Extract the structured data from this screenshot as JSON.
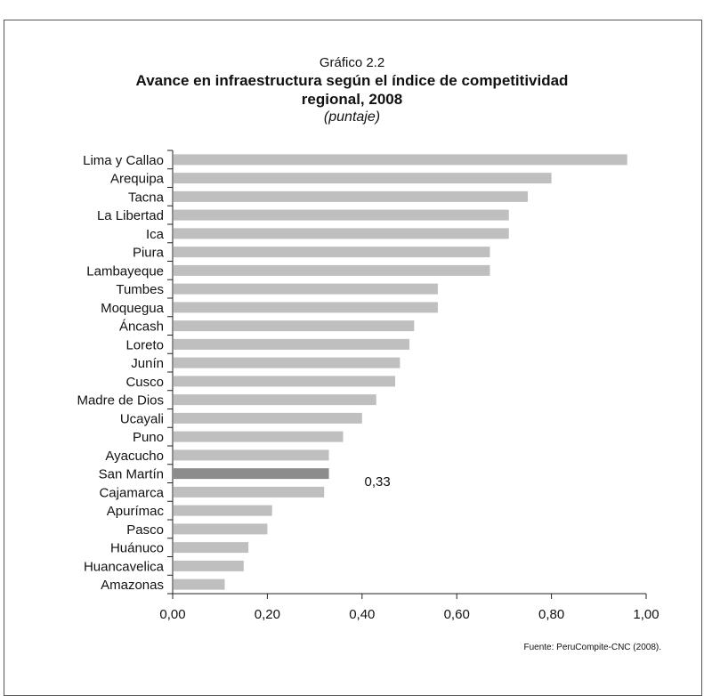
{
  "header": {
    "label": "Gráfico 2.2",
    "title_line1": "Avance en infraestructura según el índice de competitividad",
    "title_line2": "regional, 2008",
    "subtitle": "(puntaje)"
  },
  "source": "Fuente: PeruCompite-CNC (2008).",
  "chart_data": {
    "type": "bar",
    "orientation": "horizontal",
    "title": "Avance en infraestructura según el índice de competitividad regional, 2008",
    "subtitle": "(puntaje)",
    "categories": [
      "Lima y Callao",
      "Arequipa",
      "Tacna",
      "La Libertad",
      "Ica",
      "Piura",
      "Lambayeque",
      "Tumbes",
      "Moquegua",
      "Áncash",
      "Loreto",
      "Junín",
      "Cusco",
      "Madre de Dios",
      "Ucayali",
      "Puno",
      "Ayacucho",
      "San Martín",
      "Cajamarca",
      "Apurímac",
      "Pasco",
      "Huánuco",
      "Huancavelica",
      "Amazonas"
    ],
    "values": [
      0.96,
      0.8,
      0.75,
      0.71,
      0.71,
      0.67,
      0.67,
      0.56,
      0.56,
      0.51,
      0.5,
      0.48,
      0.47,
      0.43,
      0.4,
      0.36,
      0.33,
      0.33,
      0.32,
      0.21,
      0.2,
      0.16,
      0.15,
      0.11
    ],
    "highlight": {
      "category": "San Martín",
      "label": "0,33",
      "color": "#8c8c8c"
    },
    "bar_color": "#bfbfbf",
    "xlim": [
      0,
      1
    ],
    "xticks": [
      0,
      0.2,
      0.4,
      0.6,
      0.8,
      1.0
    ],
    "xtick_labels": [
      "0,00",
      "0,20",
      "0,40",
      "0,60",
      "0,80",
      "1,00"
    ],
    "xlabel": "",
    "ylabel": "",
    "grid": false
  }
}
